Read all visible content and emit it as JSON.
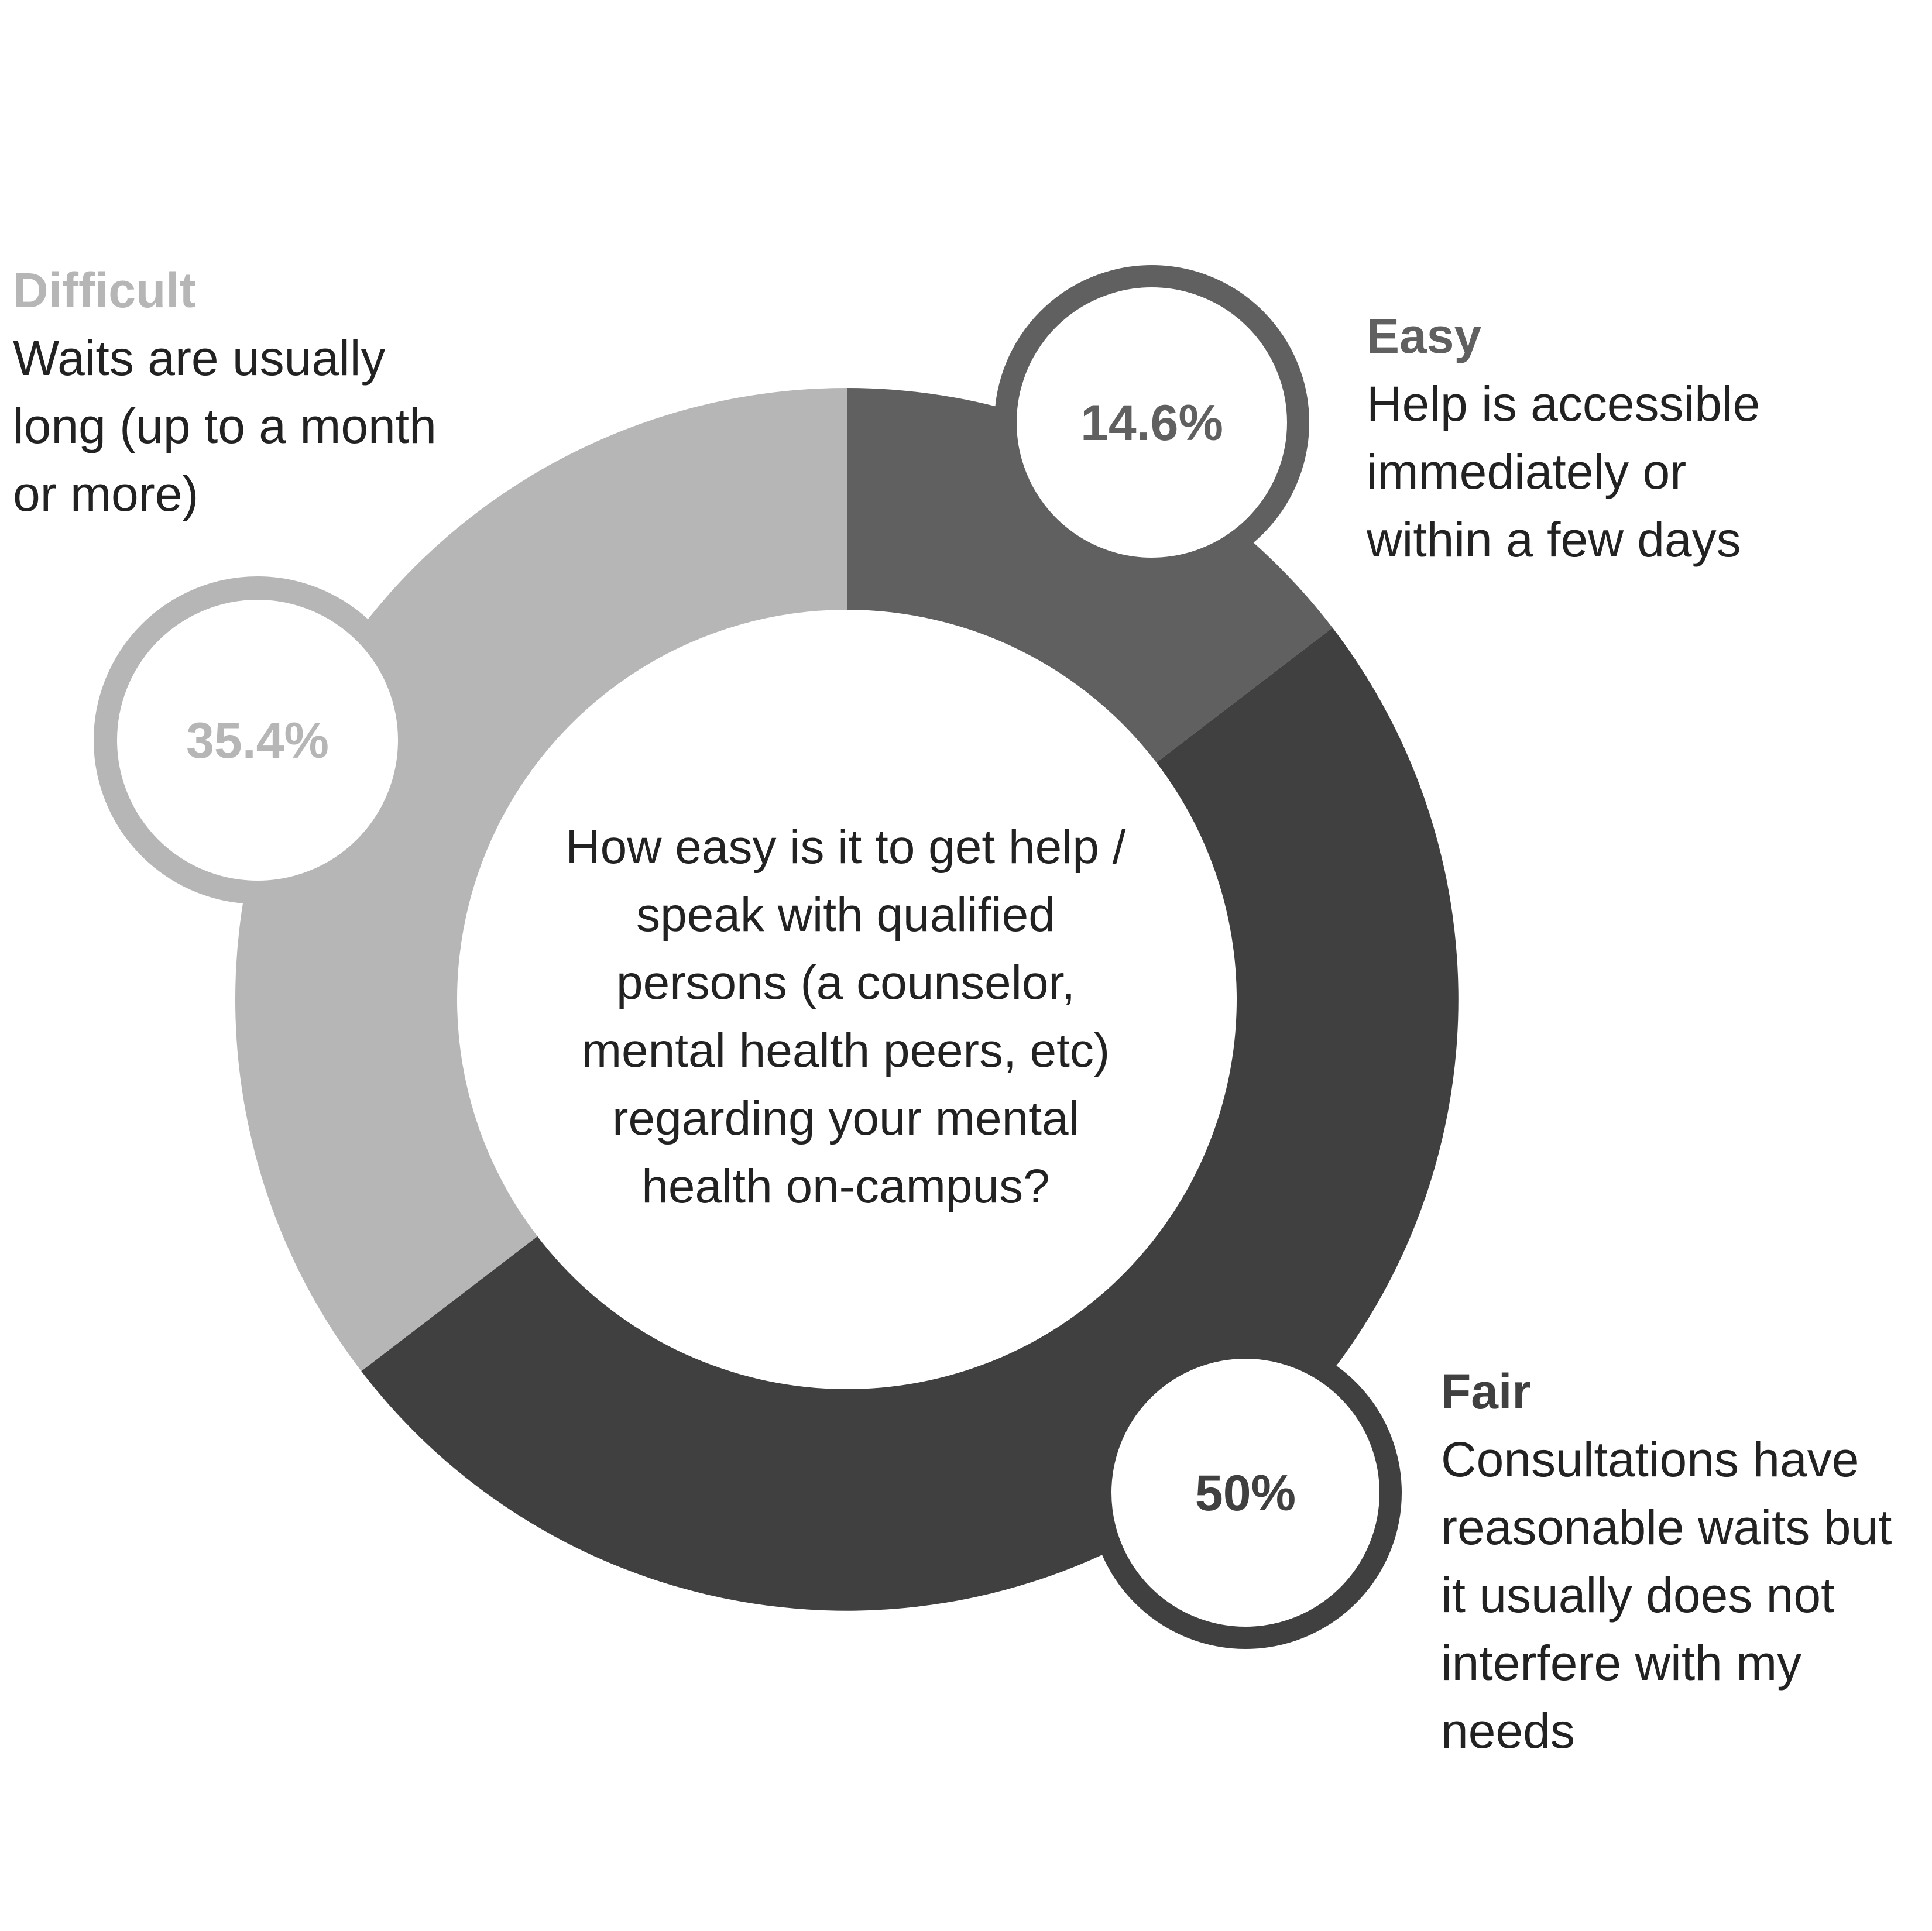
{
  "chart_data": {
    "type": "pie",
    "style": "donut",
    "title": "How easy is it to get help /\nspeak with qualified\npersons (a counselor,\nmental health peers, etc)\nregarding your mental\nhealth on-campus?",
    "slices": [
      {
        "name": "Easy",
        "value": 14.6,
        "label": "14.6%",
        "description": "Help is accessible\nimmediately or\nwithin a few days",
        "color": "#606060"
      },
      {
        "name": "Fair",
        "value": 50,
        "label": "50%",
        "description": "Consultations have\nreasonable waits but\nit usually does not\ninterfere with my\nneeds",
        "color": "#404040"
      },
      {
        "name": "Difficult",
        "value": 35.4,
        "label": "35.4%",
        "description": "Waits are usually\nlong (up to a month\nor more)",
        "color": "#b6b6b6"
      }
    ]
  }
}
